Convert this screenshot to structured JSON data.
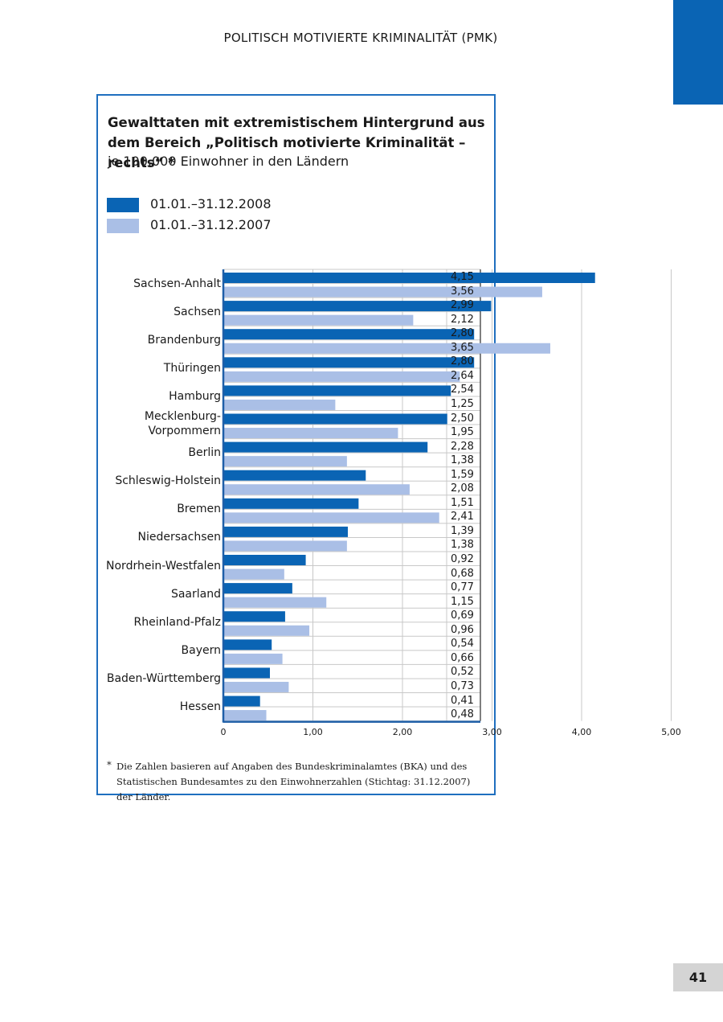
{
  "running_head": "POLITISCH MOTIVIERTE KRIMINALITÄT (PMK)",
  "page_number": "41",
  "colors": {
    "series_2008": "#0a64b4",
    "series_2007": "#aabfe6",
    "frame": "#1f6fbf",
    "grid": "#c8c8c8"
  },
  "chart_data": {
    "type": "bar",
    "orientation": "horizontal",
    "title": "Gewalttaten mit extremistischem Hintergrund aus dem Bereich „Politisch motivierte Kriminalität – rechts“ *",
    "subtitle": "je 100.000 Einwohner in den Ländern",
    "categories": [
      "Sachsen-Anhalt",
      "Sachsen",
      "Brandenburg",
      "Thüringen",
      "Hamburg",
      "Mecklenburg-Vorpommern",
      "Berlin",
      "Schleswig-Holstein",
      "Bremen",
      "Niedersachsen",
      "Nordrhein-Westfalen",
      "Saarland",
      "Rheinland-Pfalz",
      "Bayern",
      "Baden-Württemberg",
      "Hessen"
    ],
    "category_labels": [
      [
        "Sachsen-Anhalt"
      ],
      [
        "Sachsen"
      ],
      [
        "Brandenburg"
      ],
      [
        "Thüringen"
      ],
      [
        "Hamburg"
      ],
      [
        "Mecklenburg-",
        "Vorpommern"
      ],
      [
        "Berlin"
      ],
      [
        "Schleswig-Holstein"
      ],
      [
        "Bremen"
      ],
      [
        "Niedersachsen"
      ],
      [
        "Nordrhein-Westfalen"
      ],
      [
        "Saarland"
      ],
      [
        "Rheinland-Pfalz"
      ],
      [
        "Bayern"
      ],
      [
        "Baden-Württemberg"
      ],
      [
        "Hessen"
      ]
    ],
    "series": [
      {
        "name": "01.01.–31.12.2008",
        "values": [
          4.15,
          2.99,
          2.8,
          2.8,
          2.54,
          2.5,
          2.28,
          1.59,
          1.51,
          1.39,
          0.92,
          0.77,
          0.69,
          0.54,
          0.52,
          0.41
        ],
        "value_labels": [
          "4,15",
          "2,99",
          "2,80",
          "2,80",
          "2,54",
          "2,50",
          "2,28",
          "1,59",
          "1,51",
          "1,39",
          "0,92",
          "0,77",
          "0,69",
          "0,54",
          "0,52",
          "0,41"
        ]
      },
      {
        "name": "01.01.–31.12.2007",
        "values": [
          3.56,
          2.12,
          3.65,
          2.64,
          1.25,
          1.95,
          1.38,
          2.08,
          2.41,
          1.38,
          0.68,
          1.15,
          0.96,
          0.66,
          0.73,
          0.48
        ],
        "value_labels": [
          "3,56",
          "2,12",
          "3,65",
          "2,64",
          "1,25",
          "1,95",
          "1,38",
          "2,08",
          "2,41",
          "1,38",
          "0,68",
          "1,15",
          "0,96",
          "0,66",
          "0,73",
          "0,48"
        ]
      }
    ],
    "x_ticks": [
      0,
      1,
      2,
      3,
      4,
      5
    ],
    "x_tick_labels": [
      "0",
      "1,00",
      "2,00",
      "3,00",
      "4,00",
      "5,00"
    ],
    "xlim": [
      0,
      5
    ],
    "grid": true,
    "legend_position": "top-left",
    "xlabel": "",
    "ylabel": ""
  },
  "footnote": {
    "marker": "*",
    "text": "Die Zahlen basieren auf Angaben des Bundeskriminalamtes (BKA) und des Statistischen Bundesamtes zu den Einwohnerzahlen (Stichtag: 31.12.2007) der Länder."
  }
}
